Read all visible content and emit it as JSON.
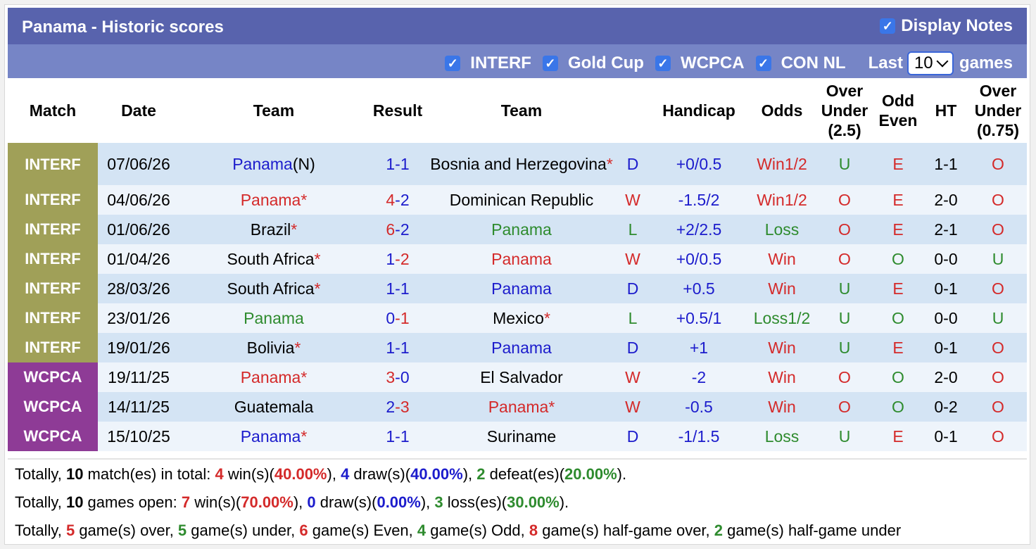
{
  "header": {
    "title": "Panama - Historic scores",
    "display_notes_label": "Display Notes"
  },
  "filters": {
    "items": [
      {
        "label": "INTERF",
        "checked": true
      },
      {
        "label": "Gold Cup",
        "checked": true
      },
      {
        "label": "WCPCA",
        "checked": true
      },
      {
        "label": "CON NL",
        "checked": true
      }
    ],
    "last_label": "Last",
    "last_value": "10",
    "games_label": "games"
  },
  "columns": {
    "match": "Match",
    "date": "Date",
    "team1": "Team",
    "result": "Result",
    "team2": "Team",
    "handicap": "Handicap",
    "odds": "Odds",
    "ou1_a": "Over",
    "ou1_b": "Under",
    "ou1_c": "(2.5)",
    "oe_a": "Odd",
    "oe_b": "Even",
    "ht": "HT",
    "ou2_a": "Over",
    "ou2_b": "Under",
    "ou2_c": "(0.75)"
  },
  "colors": {
    "red": "#d42a2a",
    "blue": "#1c1ccc",
    "green": "#2e8b2e",
    "black": "#000000",
    "interf": "#a0a058",
    "wcpca": "#8e3b96"
  },
  "rows": [
    {
      "league": "INTERF",
      "date": "07/06/26",
      "team1": "Panama",
      "team1_suffix": "(N)",
      "team1_star": "",
      "team1_color": "#1c1ccc",
      "score_home": "1",
      "score_home_color": "#1c1ccc",
      "score_away": "1",
      "score_away_color": "#1c1ccc",
      "team2": "Bosnia and Herzegovina",
      "team2_star": "*",
      "team2_color": "#000000",
      "wdl": "D",
      "wdl_color": "#1c1ccc",
      "handicap": "+0/0.5",
      "odds": "Win1/2",
      "odds_color": "#d42a2a",
      "ou": "U",
      "ou_color": "#2e8b2e",
      "oe": "E",
      "oe_color": "#d42a2a",
      "ht": "1-1",
      "ou2": "O",
      "ou2_color": "#d42a2a"
    },
    {
      "league": "INTERF",
      "date": "04/06/26",
      "team1": "Panama",
      "team1_suffix": "",
      "team1_star": "*",
      "team1_color": "#d42a2a",
      "score_home": "4",
      "score_home_color": "#d42a2a",
      "score_away": "2",
      "score_away_color": "#1c1ccc",
      "team2": "Dominican Republic",
      "team2_star": "",
      "team2_color": "#000000",
      "wdl": "W",
      "wdl_color": "#d42a2a",
      "handicap": "-1.5/2",
      "odds": "Win1/2",
      "odds_color": "#d42a2a",
      "ou": "O",
      "ou_color": "#d42a2a",
      "oe": "E",
      "oe_color": "#d42a2a",
      "ht": "2-0",
      "ou2": "O",
      "ou2_color": "#d42a2a"
    },
    {
      "league": "INTERF",
      "date": "01/06/26",
      "team1": "Brazil",
      "team1_suffix": "",
      "team1_star": "*",
      "team1_color": "#000000",
      "score_home": "6",
      "score_home_color": "#d42a2a",
      "score_away": "2",
      "score_away_color": "#1c1ccc",
      "team2": "Panama",
      "team2_star": "",
      "team2_color": "#2e8b2e",
      "wdl": "L",
      "wdl_color": "#2e8b2e",
      "handicap": "+2/2.5",
      "odds": "Loss",
      "odds_color": "#2e8b2e",
      "ou": "O",
      "ou_color": "#d42a2a",
      "oe": "E",
      "oe_color": "#d42a2a",
      "ht": "2-1",
      "ou2": "O",
      "ou2_color": "#d42a2a"
    },
    {
      "league": "INTERF",
      "date": "01/04/26",
      "team1": "South Africa",
      "team1_suffix": "",
      "team1_star": "*",
      "team1_color": "#000000",
      "score_home": "1",
      "score_home_color": "#1c1ccc",
      "score_away": "2",
      "score_away_color": "#d42a2a",
      "team2": "Panama",
      "team2_star": "",
      "team2_color": "#d42a2a",
      "wdl": "W",
      "wdl_color": "#d42a2a",
      "handicap": "+0/0.5",
      "odds": "Win",
      "odds_color": "#d42a2a",
      "ou": "O",
      "ou_color": "#d42a2a",
      "oe": "O",
      "oe_color": "#2e8b2e",
      "ht": "0-0",
      "ou2": "U",
      "ou2_color": "#2e8b2e"
    },
    {
      "league": "INTERF",
      "date": "28/03/26",
      "team1": "South Africa",
      "team1_suffix": "",
      "team1_star": "*",
      "team1_color": "#000000",
      "score_home": "1",
      "score_home_color": "#1c1ccc",
      "score_away": "1",
      "score_away_color": "#1c1ccc",
      "team2": "Panama",
      "team2_star": "",
      "team2_color": "#1c1ccc",
      "wdl": "D",
      "wdl_color": "#1c1ccc",
      "handicap": "+0.5",
      "odds": "Win",
      "odds_color": "#d42a2a",
      "ou": "U",
      "ou_color": "#2e8b2e",
      "oe": "E",
      "oe_color": "#d42a2a",
      "ht": "0-1",
      "ou2": "O",
      "ou2_color": "#d42a2a"
    },
    {
      "league": "INTERF",
      "date": "23/01/26",
      "team1": "Panama",
      "team1_suffix": "",
      "team1_star": "",
      "team1_color": "#2e8b2e",
      "score_home": "0",
      "score_home_color": "#1c1ccc",
      "score_away": "1",
      "score_away_color": "#d42a2a",
      "team2": "Mexico",
      "team2_star": "*",
      "team2_color": "#000000",
      "wdl": "L",
      "wdl_color": "#2e8b2e",
      "handicap": "+0.5/1",
      "odds": "Loss1/2",
      "odds_color": "#2e8b2e",
      "ou": "U",
      "ou_color": "#2e8b2e",
      "oe": "O",
      "oe_color": "#2e8b2e",
      "ht": "0-0",
      "ou2": "U",
      "ou2_color": "#2e8b2e"
    },
    {
      "league": "INTERF",
      "date": "19/01/26",
      "team1": "Bolivia",
      "team1_suffix": "",
      "team1_star": "*",
      "team1_color": "#000000",
      "score_home": "1",
      "score_home_color": "#1c1ccc",
      "score_away": "1",
      "score_away_color": "#1c1ccc",
      "team2": "Panama",
      "team2_star": "",
      "team2_color": "#1c1ccc",
      "wdl": "D",
      "wdl_color": "#1c1ccc",
      "handicap": "+1",
      "odds": "Win",
      "odds_color": "#d42a2a",
      "ou": "U",
      "ou_color": "#2e8b2e",
      "oe": "E",
      "oe_color": "#d42a2a",
      "ht": "0-1",
      "ou2": "O",
      "ou2_color": "#d42a2a"
    },
    {
      "league": "WCPCA",
      "date": "19/11/25",
      "team1": "Panama",
      "team1_suffix": "",
      "team1_star": "*",
      "team1_color": "#d42a2a",
      "score_home": "3",
      "score_home_color": "#d42a2a",
      "score_away": "0",
      "score_away_color": "#1c1ccc",
      "team2": "El Salvador",
      "team2_star": "",
      "team2_color": "#000000",
      "wdl": "W",
      "wdl_color": "#d42a2a",
      "handicap": "-2",
      "odds": "Win",
      "odds_color": "#d42a2a",
      "ou": "O",
      "ou_color": "#d42a2a",
      "oe": "O",
      "oe_color": "#2e8b2e",
      "ht": "2-0",
      "ou2": "O",
      "ou2_color": "#d42a2a"
    },
    {
      "league": "WCPCA",
      "date": "14/11/25",
      "team1": "Guatemala",
      "team1_suffix": "",
      "team1_star": "",
      "team1_color": "#000000",
      "score_home": "2",
      "score_home_color": "#1c1ccc",
      "score_away": "3",
      "score_away_color": "#d42a2a",
      "team2": "Panama",
      "team2_star": "*",
      "team2_color": "#d42a2a",
      "wdl": "W",
      "wdl_color": "#d42a2a",
      "handicap": "-0.5",
      "odds": "Win",
      "odds_color": "#d42a2a",
      "ou": "O",
      "ou_color": "#d42a2a",
      "oe": "O",
      "oe_color": "#2e8b2e",
      "ht": "0-2",
      "ou2": "O",
      "ou2_color": "#d42a2a"
    },
    {
      "league": "WCPCA",
      "date": "15/10/25",
      "team1": "Panama",
      "team1_suffix": "",
      "team1_star": "*",
      "team1_color": "#1c1ccc",
      "score_home": "1",
      "score_home_color": "#1c1ccc",
      "score_away": "1",
      "score_away_color": "#1c1ccc",
      "team2": "Suriname",
      "team2_star": "",
      "team2_color": "#000000",
      "wdl": "D",
      "wdl_color": "#1c1ccc",
      "handicap": "-1/1.5",
      "odds": "Loss",
      "odds_color": "#2e8b2e",
      "ou": "U",
      "ou_color": "#2e8b2e",
      "oe": "E",
      "oe_color": "#d42a2a",
      "ht": "0-1",
      "ou2": "O",
      "ou2_color": "#d42a2a"
    }
  ],
  "summary": {
    "line1": [
      {
        "t": "Totally, ",
        "c": ""
      },
      {
        "t": "10",
        "c": "b"
      },
      {
        "t": " match(es) in total: ",
        "c": ""
      },
      {
        "t": "4",
        "c": "red b"
      },
      {
        "t": " win(s)(",
        "c": ""
      },
      {
        "t": "40.00%",
        "c": "red b"
      },
      {
        "t": "), ",
        "c": ""
      },
      {
        "t": "4",
        "c": "blue b"
      },
      {
        "t": " draw(s)(",
        "c": ""
      },
      {
        "t": "40.00%",
        "c": "blue b"
      },
      {
        "t": "), ",
        "c": ""
      },
      {
        "t": "2",
        "c": "green b"
      },
      {
        "t": " defeat(es)(",
        "c": ""
      },
      {
        "t": "20.00%",
        "c": "green b"
      },
      {
        "t": ").",
        "c": ""
      }
    ],
    "line2": [
      {
        "t": "Totally, ",
        "c": ""
      },
      {
        "t": "10",
        "c": "b"
      },
      {
        "t": " games open: ",
        "c": ""
      },
      {
        "t": "7",
        "c": "red b"
      },
      {
        "t": " win(s)(",
        "c": ""
      },
      {
        "t": "70.00%",
        "c": "red b"
      },
      {
        "t": "), ",
        "c": ""
      },
      {
        "t": "0",
        "c": "blue b"
      },
      {
        "t": " draw(s)(",
        "c": ""
      },
      {
        "t": "0.00%",
        "c": "blue b"
      },
      {
        "t": "), ",
        "c": ""
      },
      {
        "t": "3",
        "c": "green b"
      },
      {
        "t": " loss(es)(",
        "c": ""
      },
      {
        "t": "30.00%",
        "c": "green b"
      },
      {
        "t": ").",
        "c": ""
      }
    ],
    "line3": [
      {
        "t": "Totally, ",
        "c": ""
      },
      {
        "t": "5",
        "c": "red b"
      },
      {
        "t": " game(s) over, ",
        "c": ""
      },
      {
        "t": "5",
        "c": "green b"
      },
      {
        "t": " game(s) under, ",
        "c": ""
      },
      {
        "t": "6",
        "c": "red b"
      },
      {
        "t": " game(s) Even, ",
        "c": ""
      },
      {
        "t": "4",
        "c": "green b"
      },
      {
        "t": " game(s) Odd, ",
        "c": ""
      },
      {
        "t": "8",
        "c": "red b"
      },
      {
        "t": " game(s) half-game over, ",
        "c": ""
      },
      {
        "t": "2",
        "c": "green b"
      },
      {
        "t": " game(s) half-game under",
        "c": ""
      }
    ]
  }
}
